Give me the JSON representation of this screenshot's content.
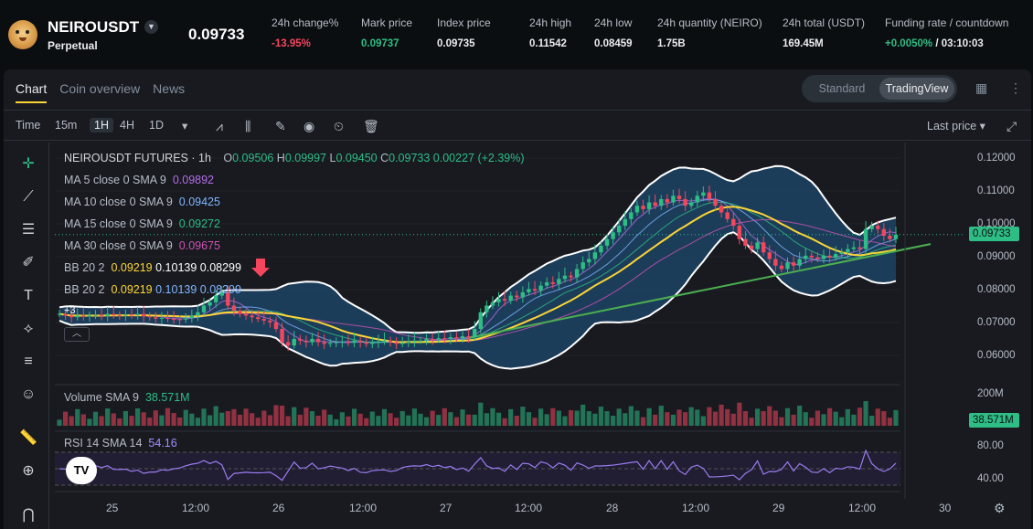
{
  "header": {
    "symbol": "NEIROUSDT",
    "contract_type": "Perpetual",
    "last_price": "0.09733",
    "stats": [
      {
        "label": "24h change%",
        "value": "-13.95%",
        "tone": "red"
      },
      {
        "label": "Mark price",
        "value": "0.09737",
        "tone": "green"
      },
      {
        "label": "Index price",
        "value": "0.09735",
        "tone": "white"
      },
      {
        "label": "24h high",
        "value": "0.11542",
        "tone": "white"
      },
      {
        "label": "24h low",
        "value": "0.08459",
        "tone": "white"
      },
      {
        "label": "24h quantity (NEIRO)",
        "value": "1.75B",
        "tone": "white"
      },
      {
        "label": "24h total (USDT)",
        "value": "169.45M",
        "tone": "white"
      },
      {
        "label": "Funding rate / countdown",
        "value": "+0.0050%",
        "value2": " / 03:10:03",
        "tone": "green"
      }
    ]
  },
  "tabs": [
    "Chart",
    "Coin overview",
    "News"
  ],
  "view_modes": [
    "Standard",
    "TradingView"
  ],
  "toolbar": {
    "time_label": "Time",
    "intervals": [
      "15m",
      "1H",
      "4H",
      "1D"
    ],
    "selected_interval": "1H",
    "price_type": "Last price"
  },
  "legend": {
    "title": "NEIROUSDT FUTURES · 1h",
    "ohlc": {
      "o": "0.09506",
      "h": "0.09997",
      "l": "0.09450",
      "c": "0.09733",
      "chg": "0.00227 (+2.39%)"
    },
    "ma": [
      {
        "label": "MA 5 close 0 SMA 9",
        "value": "0.09892",
        "color": "#b46ee6"
      },
      {
        "label": "MA 10 close 0 SMA 9",
        "value": "0.09425",
        "color": "#7fb5ff"
      },
      {
        "label": "MA 15 close 0 SMA 9",
        "value": "0.09272",
        "color": "#2ebd85"
      },
      {
        "label": "MA 30 close 0 SMA 9",
        "value": "0.09675",
        "color": "#d052b6"
      }
    ],
    "bb1": {
      "label": "BB 20 2",
      "v1": "0.09219",
      "v2": "0.10139",
      "v3": "0.08299"
    },
    "bb2": {
      "label": "BB 20 2",
      "v1": "0.09219",
      "v2": "0.10139",
      "v3": "0.08299"
    },
    "collapsed_count": "+3"
  },
  "price_axis": [
    "0.12000",
    "0.11000",
    "0.10000",
    "0.09000",
    "0.08000",
    "0.07000",
    "0.06000"
  ],
  "current_price_tag": "0.09733",
  "volume": {
    "label": "Volume SMA 9",
    "value": "38.571M",
    "axis_top": "200M",
    "tag": "38.571M"
  },
  "rsi": {
    "label": "RSI 14 SMA 14",
    "value": "54.16",
    "axis": [
      "80.00",
      "40.00"
    ]
  },
  "x_axis": [
    "25",
    "12:00",
    "26",
    "12:00",
    "27",
    "12:00",
    "28",
    "12:00",
    "29",
    "12:00",
    "30"
  ],
  "colors": {
    "up": "#2ebd85",
    "down": "#f6465d",
    "accent": "#fcd535"
  },
  "chart_data": {
    "type": "candlestick",
    "interval": "1h",
    "x_axis_labels": [
      "25",
      "12:00",
      "26",
      "12:00",
      "27",
      "12:00",
      "28",
      "12:00",
      "29",
      "12:00",
      "30"
    ],
    "close_approx": [
      0.0735,
      0.073,
      0.0725,
      0.073,
      0.0728,
      0.073,
      0.0732,
      0.0729,
      0.0735,
      0.0731,
      0.073,
      0.0733,
      0.0731,
      0.0735,
      0.0728,
      0.0725,
      0.0721,
      0.0723,
      0.072,
      0.0719,
      0.0718,
      0.0722,
      0.073,
      0.074,
      0.076,
      0.077,
      0.079,
      0.08,
      0.076,
      0.0745,
      0.0735,
      0.073,
      0.0725,
      0.072,
      0.0715,
      0.071,
      0.069,
      0.065,
      0.064,
      0.066,
      0.0655,
      0.065,
      0.066,
      0.065,
      0.0645,
      0.0648,
      0.065,
      0.0652,
      0.0648,
      0.0655,
      0.065,
      0.0645,
      0.0648,
      0.0652,
      0.0655,
      0.065,
      0.0645,
      0.0648,
      0.0652,
      0.0655,
      0.0655,
      0.066,
      0.0658,
      0.0662,
      0.066,
      0.0665,
      0.0662,
      0.0668,
      0.0665,
      0.069,
      0.074,
      0.076,
      0.077,
      0.078,
      0.0775,
      0.079,
      0.0785,
      0.08,
      0.081,
      0.0805,
      0.082,
      0.083,
      0.0825,
      0.084,
      0.085,
      0.0845,
      0.087,
      0.089,
      0.09,
      0.092,
      0.094,
      0.096,
      0.098,
      0.1,
      0.102,
      0.104,
      0.106,
      0.105,
      0.107,
      0.106,
      0.108,
      0.107,
      0.109,
      0.108,
      0.106,
      0.107,
      0.109,
      0.11,
      0.108,
      0.106,
      0.104,
      0.102,
      0.1,
      0.096,
      0.094,
      0.093,
      0.095,
      0.092,
      0.09,
      0.088,
      0.087,
      0.089,
      0.088,
      0.09,
      0.091,
      0.0905,
      0.09,
      0.091,
      0.0905,
      0.0915,
      0.092,
      0.093,
      0.0935,
      0.093,
      0.099,
      0.1,
      0.099,
      0.097,
      0.096,
      0.0973
    ],
    "volume_peak_label": "200M",
    "rsi_levels": [
      70,
      50,
      30
    ],
    "price_range": [
      0.055,
      0.125
    ]
  }
}
